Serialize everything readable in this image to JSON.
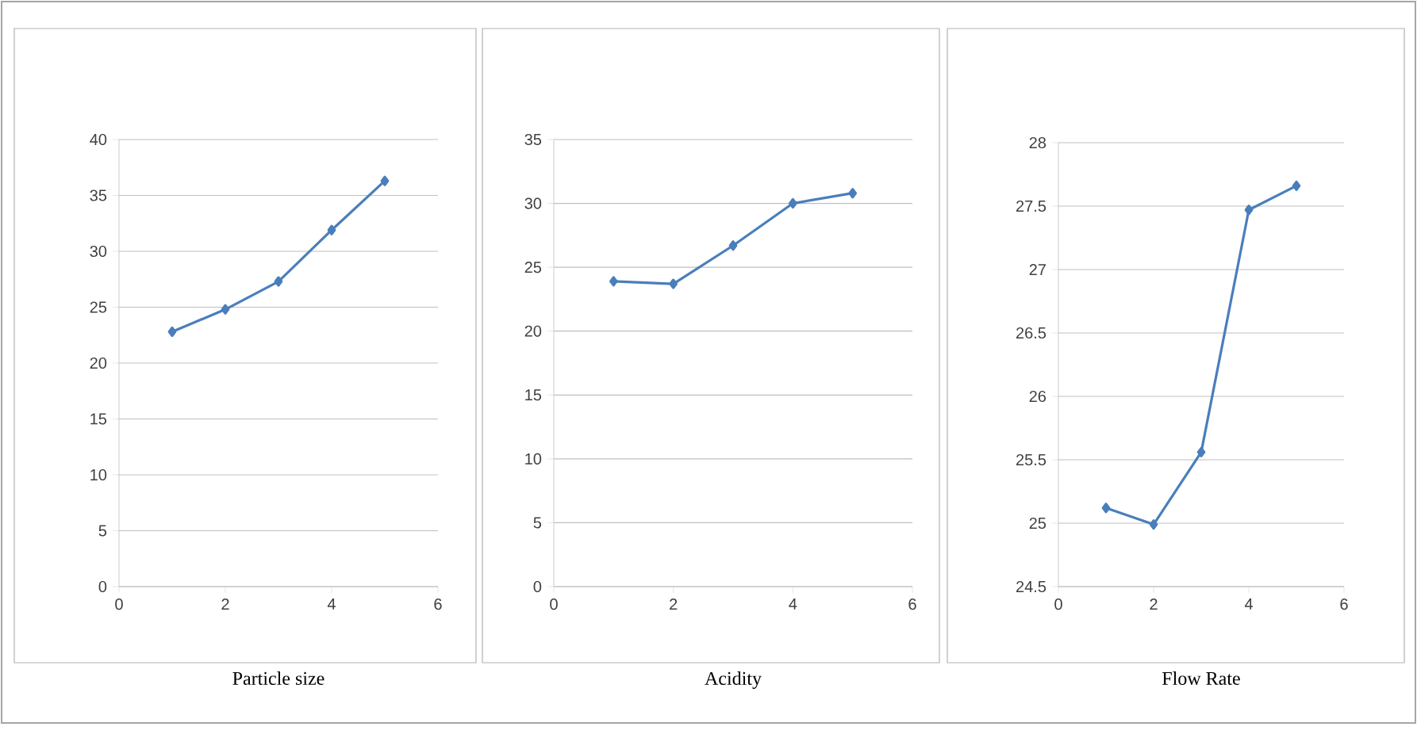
{
  "chart_data": [
    {
      "type": "line",
      "xlabel": "Particle size",
      "x": [
        1,
        2,
        3,
        4,
        5
      ],
      "series": [
        {
          "color": "#4a7ebb",
          "values": [
            22.8,
            24.8,
            27.3,
            31.9,
            36.3
          ]
        }
      ],
      "xlim": [
        0,
        6
      ],
      "xticks": [
        0,
        2,
        4,
        6
      ],
      "ylim": [
        0,
        40
      ],
      "yticks": [
        0,
        5,
        10,
        15,
        20,
        25,
        30,
        35,
        40
      ],
      "grid": "y",
      "marker": "diamond"
    },
    {
      "type": "line",
      "xlabel": "Acidity",
      "x": [
        1,
        2,
        3,
        4,
        5
      ],
      "series": [
        {
          "color": "#4a7ebb",
          "values": [
            23.9,
            23.7,
            26.7,
            30.0,
            30.8
          ]
        }
      ],
      "xlim": [
        0,
        6
      ],
      "xticks": [
        0,
        2,
        4,
        6
      ],
      "ylim": [
        0,
        35
      ],
      "yticks": [
        0,
        5,
        10,
        15,
        20,
        25,
        30,
        35
      ],
      "grid": "y",
      "marker": "diamond"
    },
    {
      "type": "line",
      "xlabel": "Flow Rate",
      "x": [
        1,
        2,
        3,
        4,
        5
      ],
      "series": [
        {
          "color": "#4a7ebb",
          "values": [
            25.12,
            24.99,
            25.56,
            27.47,
            27.66
          ]
        }
      ],
      "xlim": [
        0,
        6
      ],
      "xticks": [
        0,
        2,
        4,
        6
      ],
      "ylim": [
        24.5,
        28
      ],
      "yticks": [
        24.5,
        25,
        25.5,
        26,
        26.5,
        27,
        27.5,
        28
      ],
      "grid": "y",
      "marker": "diamond"
    }
  ]
}
